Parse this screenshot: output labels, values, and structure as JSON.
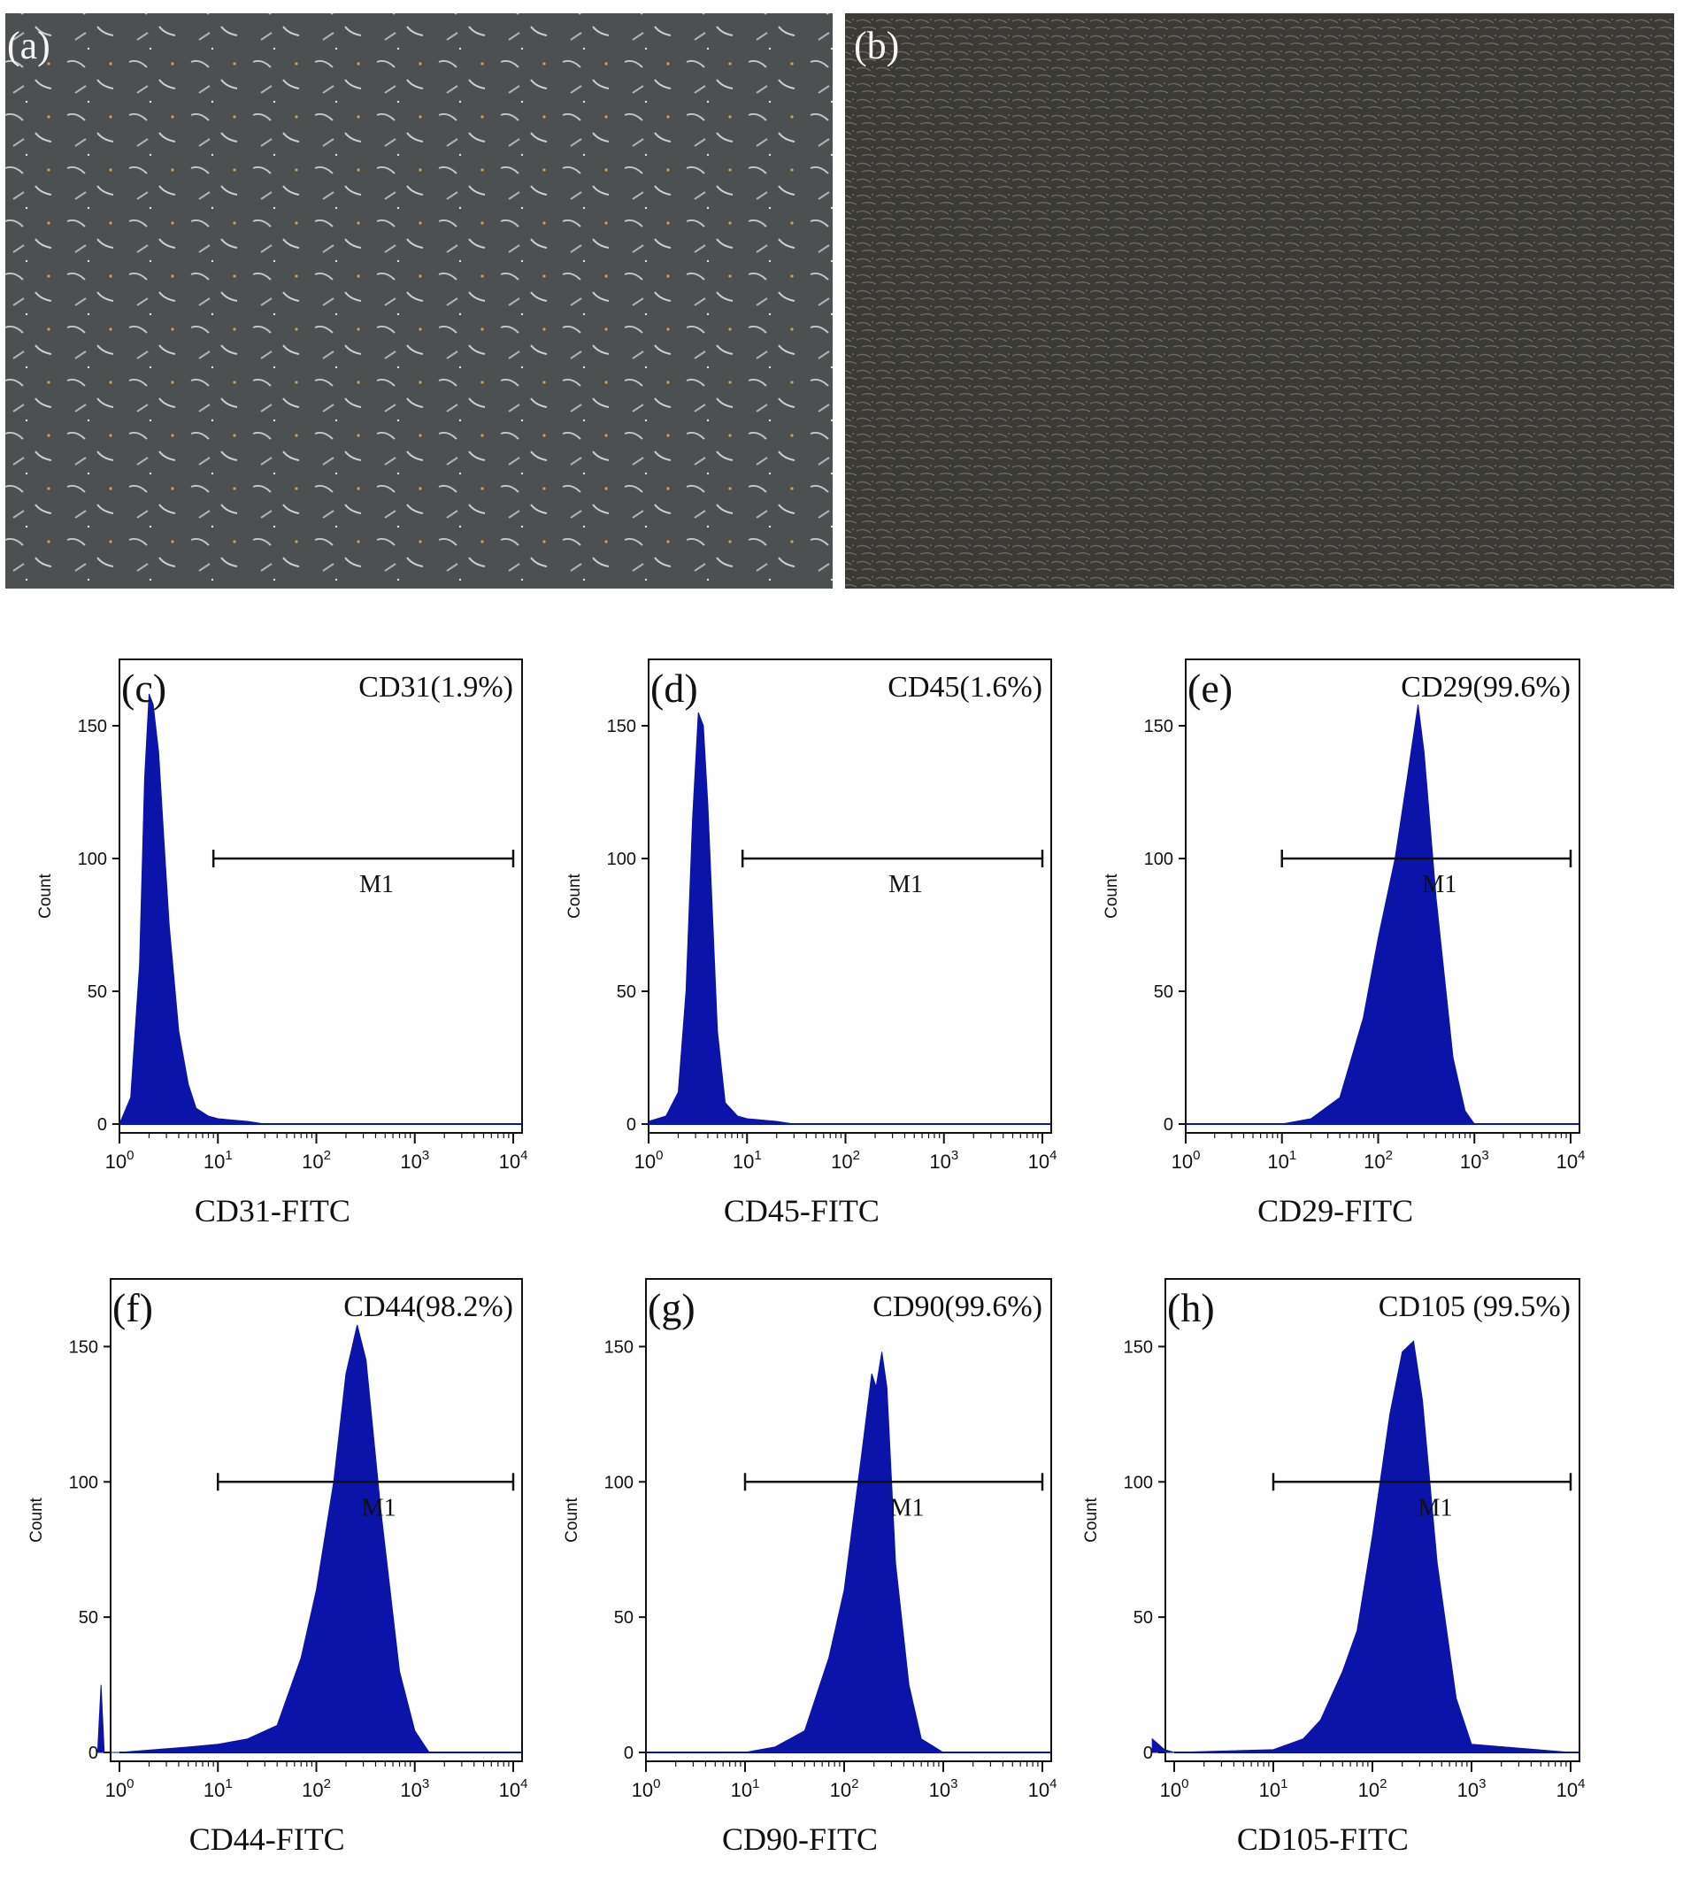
{
  "colors": {
    "histogram_fill": "#0a14a8",
    "axis": "#111111",
    "photo_a_bg": "#4d5050",
    "photo_b_bg": "#3a3b36"
  },
  "photos": [
    {
      "label": "(a)",
      "content": "sparse spindle-shaped cells, phase contrast",
      "density": "sparse"
    },
    {
      "label": "(b)",
      "content": "confluent dense spindle-shaped cells, phase contrast",
      "density": "dense"
    }
  ],
  "chart_data": [
    {
      "type": "area",
      "panel": "(c)",
      "annotation": "CD31(1.9%)",
      "xlabel": "CD31-FITC",
      "ylabel": "Count",
      "xscale": "log",
      "xlim": [
        1,
        10000
      ],
      "ylim": [
        0,
        175
      ],
      "yticks": [
        0,
        50,
        100,
        150
      ],
      "xticks": [
        "10^0",
        "10^1",
        "10^2",
        "10^3",
        "10^4"
      ],
      "marker": {
        "label": "M1",
        "from": 9,
        "to": 10000,
        "y": 100
      },
      "x": [
        1.0,
        1.3,
        1.6,
        1.8,
        2.0,
        2.2,
        2.5,
        2.8,
        3.2,
        4.0,
        5.0,
        6.0,
        8.0,
        10,
        20,
        30,
        10000
      ],
      "y": [
        0,
        10,
        60,
        130,
        162,
        158,
        140,
        110,
        75,
        35,
        15,
        6,
        3,
        2,
        1,
        0,
        0
      ]
    },
    {
      "type": "area",
      "panel": "(d)",
      "annotation": "CD45(1.6%)",
      "xlabel": "CD45-FITC",
      "ylabel": "Count",
      "xscale": "log",
      "xlim": [
        1,
        10000
      ],
      "ylim": [
        0,
        175
      ],
      "yticks": [
        0,
        50,
        100,
        150
      ],
      "xticks": [
        "10^0",
        "10^1",
        "10^2",
        "10^3",
        "10^4"
      ],
      "marker": {
        "label": "M1",
        "from": 9,
        "to": 10000,
        "y": 100
      },
      "x": [
        1.0,
        1.5,
        2.0,
        2.4,
        2.8,
        3.2,
        3.6,
        4.0,
        4.5,
        5.0,
        6.0,
        8.0,
        10,
        20,
        30,
        10000
      ],
      "y": [
        1,
        3,
        12,
        50,
        115,
        155,
        150,
        120,
        75,
        35,
        8,
        3,
        2,
        1,
        0,
        0
      ]
    },
    {
      "type": "area",
      "panel": "(e)",
      "annotation": "CD29(99.6%)",
      "xlabel": "CD29-FITC",
      "ylabel": "Count",
      "xscale": "log",
      "xlim": [
        1,
        10000
      ],
      "ylim": [
        0,
        175
      ],
      "yticks": [
        0,
        50,
        100,
        150
      ],
      "xticks": [
        "10^0",
        "10^1",
        "10^2",
        "10^3",
        "10^4"
      ],
      "marker": {
        "label": "M1",
        "from": 10,
        "to": 10000,
        "y": 100
      },
      "x": [
        10,
        20,
        40,
        70,
        100,
        150,
        200,
        260,
        300,
        400,
        600,
        800,
        1000,
        10000
      ],
      "y": [
        0,
        2,
        10,
        40,
        70,
        100,
        130,
        158,
        140,
        85,
        25,
        5,
        0,
        0
      ]
    },
    {
      "type": "area",
      "panel": "(f)",
      "annotation": "CD44(98.2%)",
      "xlabel": "CD44-FITC",
      "ylabel": "Count",
      "xscale": "log",
      "xlim": [
        0.6,
        10000
      ],
      "ylim": [
        0,
        175
      ],
      "yticks": [
        0,
        50,
        100,
        150
      ],
      "xticks": [
        "10^0",
        "10^1",
        "10^2",
        "10^3",
        "10^4"
      ],
      "marker": {
        "label": "M1",
        "from": 10,
        "to": 10000,
        "y": 100
      },
      "x": [
        0.6,
        0.65,
        0.7,
        1.0,
        5,
        10,
        20,
        40,
        70,
        100,
        150,
        200,
        260,
        320,
        450,
        700,
        1000,
        1400,
        10000
      ],
      "y": [
        0,
        25,
        0,
        0,
        2,
        3,
        5,
        10,
        35,
        60,
        100,
        140,
        158,
        145,
        90,
        30,
        8,
        0,
        0
      ]
    },
    {
      "type": "area",
      "panel": "(g)",
      "annotation": "CD90(99.6%)",
      "xlabel": "CD90-FITC",
      "ylabel": "Count",
      "xscale": "log",
      "xlim": [
        1,
        10000
      ],
      "ylim": [
        0,
        175
      ],
      "yticks": [
        0,
        50,
        100,
        150
      ],
      "xticks": [
        "10^0",
        "10^1",
        "10^2",
        "10^3",
        "10^4"
      ],
      "marker": {
        "label": "M1",
        "from": 10,
        "to": 10000,
        "y": 100
      },
      "x": [
        10,
        20,
        40,
        70,
        100,
        150,
        190,
        210,
        240,
        270,
        330,
        450,
        600,
        1000,
        10000
      ],
      "y": [
        0,
        2,
        8,
        35,
        60,
        110,
        140,
        135,
        148,
        135,
        70,
        25,
        5,
        0,
        0
      ]
    },
    {
      "type": "area",
      "panel": "(h)",
      "annotation": "CD105 (99.5%)",
      "xlabel": "CD105-FITC",
      "ylabel": "Count",
      "xscale": "log",
      "xlim": [
        0.6,
        10000
      ],
      "ylim": [
        0,
        175
      ],
      "yticks": [
        0,
        50,
        100,
        150
      ],
      "xticks": [
        "10^0",
        "10^1",
        "10^2",
        "10^3",
        "10^4"
      ],
      "marker": {
        "label": "M1",
        "from": 10,
        "to": 10000,
        "y": 100
      },
      "x": [
        0.6,
        0.8,
        1.0,
        10,
        20,
        30,
        50,
        70,
        100,
        150,
        200,
        260,
        320,
        450,
        700,
        1000,
        10000
      ],
      "y": [
        5,
        1,
        0,
        1,
        5,
        12,
        30,
        45,
        80,
        125,
        148,
        152,
        130,
        70,
        20,
        3,
        0
      ]
    }
  ]
}
